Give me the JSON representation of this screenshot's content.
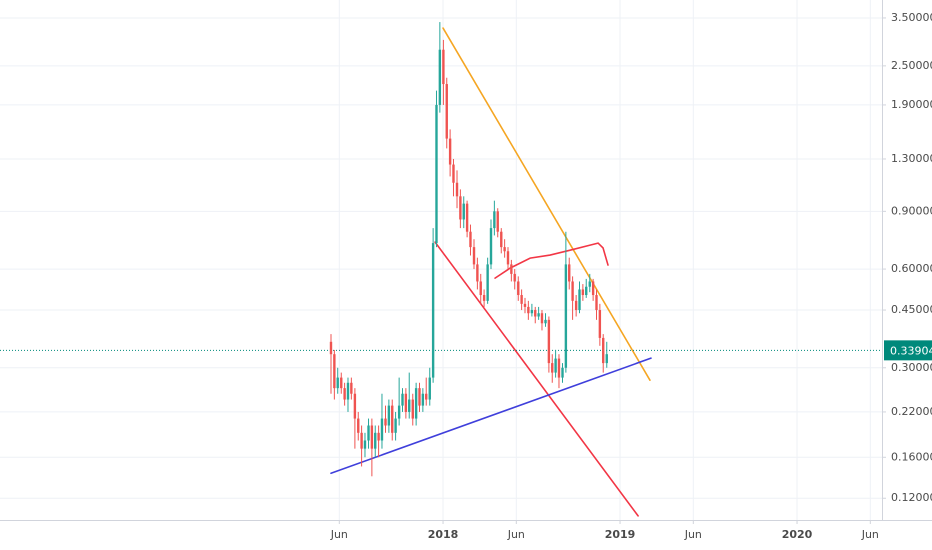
{
  "chart_data": {
    "type": "candlestick",
    "log_scale": true,
    "grid": true,
    "up_color": "#26a69a",
    "down_color": "#ef5350",
    "xlim": [
      2015.497,
      2020.48
    ],
    "ylim": [
      0.103,
      3.97
    ],
    "xticks": [
      {
        "value": 2017.414,
        "label": "Jun"
      },
      2018,
      {
        "value": 2018.414,
        "label": "Jun"
      },
      2019,
      {
        "value": 2019.414,
        "label": "Jun"
      },
      2020,
      {
        "value": 2020.414,
        "label": "Jun"
      }
    ],
    "yticks": [
      {
        "value": 3.5,
        "label": "3.50000"
      },
      {
        "value": 2.5,
        "label": "2.50000"
      },
      {
        "value": 1.9,
        "label": "1.90000"
      },
      {
        "value": 1.3,
        "label": "1.30000"
      },
      {
        "value": 0.9,
        "label": "0.90000"
      },
      {
        "value": 0.6,
        "label": "0.60000"
      },
      {
        "value": 0.45,
        "label": "0.45000"
      },
      {
        "value": 0.3,
        "label": "0.30000"
      },
      {
        "value": 0.22,
        "label": "0.22000"
      },
      {
        "value": 0.16,
        "label": "0.16000"
      },
      {
        "value": 0.12,
        "label": "0.12000"
      }
    ],
    "x": [
      2017.367,
      2017.386,
      2017.405,
      2017.425,
      2017.444,
      2017.463,
      2017.482,
      2017.502,
      2017.521,
      2017.54,
      2017.559,
      2017.579,
      2017.598,
      2017.617,
      2017.636,
      2017.655,
      2017.675,
      2017.694,
      2017.713,
      2017.732,
      2017.752,
      2017.771,
      2017.79,
      2017.809,
      2017.829,
      2017.848,
      2017.867,
      2017.886,
      2017.905,
      2017.925,
      2017.944,
      2017.963,
      2017.982,
      2018.002,
      2018.021,
      2018.04,
      2018.059,
      2018.079,
      2018.098,
      2018.117,
      2018.136,
      2018.155,
      2018.175,
      2018.194,
      2018.213,
      2018.232,
      2018.252,
      2018.271,
      2018.29,
      2018.309,
      2018.329,
      2018.348,
      2018.367,
      2018.386,
      2018.405,
      2018.425,
      2018.444,
      2018.463,
      2018.482,
      2018.502,
      2018.521,
      2018.54,
      2018.559,
      2018.579,
      2018.598,
      2018.617,
      2018.636,
      2018.655,
      2018.675,
      2018.694,
      2018.713,
      2018.732,
      2018.752,
      2018.771,
      2018.79,
      2018.809,
      2018.829,
      2018.848,
      2018.867,
      2018.886,
      2018.905,
      2018.925
    ],
    "open": [
      0.36,
      0.33,
      0.26,
      0.28,
      0.26,
      0.24,
      0.27,
      0.25,
      0.21,
      0.19,
      0.17,
      0.18,
      0.2,
      0.17,
      0.19,
      0.18,
      0.21,
      0.2,
      0.23,
      0.19,
      0.21,
      0.23,
      0.25,
      0.22,
      0.24,
      0.21,
      0.26,
      0.23,
      0.25,
      0.24,
      0.28,
      0.72,
      1.9,
      2.8,
      2.2,
      1.5,
      1.25,
      1.1,
      1.0,
      0.85,
      0.95,
      0.78,
      0.7,
      0.62,
      0.55,
      0.5,
      0.48,
      0.62,
      0.8,
      0.9,
      0.78,
      0.7,
      0.68,
      0.62,
      0.58,
      0.55,
      0.5,
      0.47,
      0.46,
      0.44,
      0.45,
      0.43,
      0.44,
      0.41,
      0.42,
      0.31,
      0.29,
      0.32,
      0.28,
      0.3,
      0.62,
      0.55,
      0.48,
      0.45,
      0.52,
      0.5,
      0.53,
      0.55,
      0.5,
      0.45,
      0.37,
      0.31
    ],
    "high": [
      0.38,
      0.34,
      0.3,
      0.29,
      0.27,
      0.28,
      0.28,
      0.26,
      0.22,
      0.2,
      0.19,
      0.21,
      0.21,
      0.2,
      0.2,
      0.25,
      0.23,
      0.24,
      0.24,
      0.22,
      0.28,
      0.26,
      0.26,
      0.29,
      0.25,
      0.27,
      0.27,
      0.26,
      0.28,
      0.3,
      0.8,
      2.1,
      3.4,
      3.0,
      2.3,
      1.6,
      1.3,
      1.2,
      1.05,
      1.0,
      0.97,
      0.82,
      0.74,
      0.65,
      0.58,
      0.52,
      0.65,
      0.85,
      0.97,
      0.92,
      0.8,
      0.74,
      0.7,
      0.64,
      0.6,
      0.57,
      0.52,
      0.49,
      0.48,
      0.47,
      0.46,
      0.46,
      0.45,
      0.44,
      0.43,
      0.33,
      0.34,
      0.33,
      0.31,
      0.78,
      0.65,
      0.57,
      0.5,
      0.55,
      0.54,
      0.56,
      0.58,
      0.56,
      0.52,
      0.47,
      0.38,
      0.36
    ],
    "low": [
      0.25,
      0.24,
      0.25,
      0.25,
      0.23,
      0.22,
      0.24,
      0.17,
      0.18,
      0.15,
      0.16,
      0.17,
      0.14,
      0.16,
      0.16,
      0.17,
      0.19,
      0.19,
      0.18,
      0.18,
      0.2,
      0.22,
      0.21,
      0.21,
      0.2,
      0.2,
      0.22,
      0.22,
      0.23,
      0.23,
      0.27,
      0.7,
      1.8,
      1.9,
      1.4,
      1.15,
      1.0,
      0.92,
      0.8,
      0.8,
      0.75,
      0.66,
      0.6,
      0.52,
      0.47,
      0.46,
      0.47,
      0.6,
      0.76,
      0.75,
      0.67,
      0.65,
      0.6,
      0.55,
      0.52,
      0.48,
      0.45,
      0.44,
      0.42,
      0.43,
      0.41,
      0.42,
      0.39,
      0.4,
      0.29,
      0.27,
      0.28,
      0.26,
      0.27,
      0.29,
      0.52,
      0.42,
      0.43,
      0.44,
      0.48,
      0.49,
      0.51,
      0.48,
      0.42,
      0.35,
      0.29,
      0.3
    ],
    "close": [
      0.33,
      0.26,
      0.28,
      0.26,
      0.24,
      0.27,
      0.25,
      0.21,
      0.19,
      0.17,
      0.18,
      0.2,
      0.17,
      0.19,
      0.18,
      0.21,
      0.2,
      0.23,
      0.19,
      0.21,
      0.23,
      0.25,
      0.22,
      0.24,
      0.21,
      0.26,
      0.23,
      0.25,
      0.24,
      0.28,
      0.72,
      1.9,
      2.8,
      2.2,
      1.5,
      1.25,
      1.1,
      1.0,
      0.85,
      0.95,
      0.78,
      0.7,
      0.62,
      0.55,
      0.5,
      0.48,
      0.62,
      0.8,
      0.9,
      0.78,
      0.7,
      0.68,
      0.62,
      0.58,
      0.55,
      0.5,
      0.47,
      0.46,
      0.44,
      0.45,
      0.43,
      0.44,
      0.41,
      0.42,
      0.31,
      0.29,
      0.32,
      0.28,
      0.3,
      0.62,
      0.55,
      0.48,
      0.45,
      0.52,
      0.5,
      0.53,
      0.55,
      0.5,
      0.45,
      0.37,
      0.31,
      0.33
    ],
    "last_price": 0.33904,
    "last_price_color": "#00897b",
    "lines": [
      {
        "color": "#f5a623",
        "x": [
          2018.0,
          2019.169
        ],
        "values": [
          3.26,
          0.275
        ]
      },
      {
        "color": "#f23645",
        "x": [
          2017.955,
          2019.102
        ],
        "values": [
          0.725,
          0.106
        ]
      },
      {
        "color": "#3f3fdb",
        "x": [
          2017.367,
          2019.175
        ],
        "values": [
          0.143,
          0.321
        ]
      }
    ],
    "moving_average": {
      "color": "#f23645",
      "x": [
        2018.294,
        2018.379,
        2018.492,
        2018.605,
        2018.718,
        2018.831,
        2018.876,
        2018.904,
        2018.932
      ],
      "values": [
        0.563,
        0.604,
        0.648,
        0.662,
        0.685,
        0.71,
        0.72,
        0.696,
        0.617
      ]
    }
  }
}
